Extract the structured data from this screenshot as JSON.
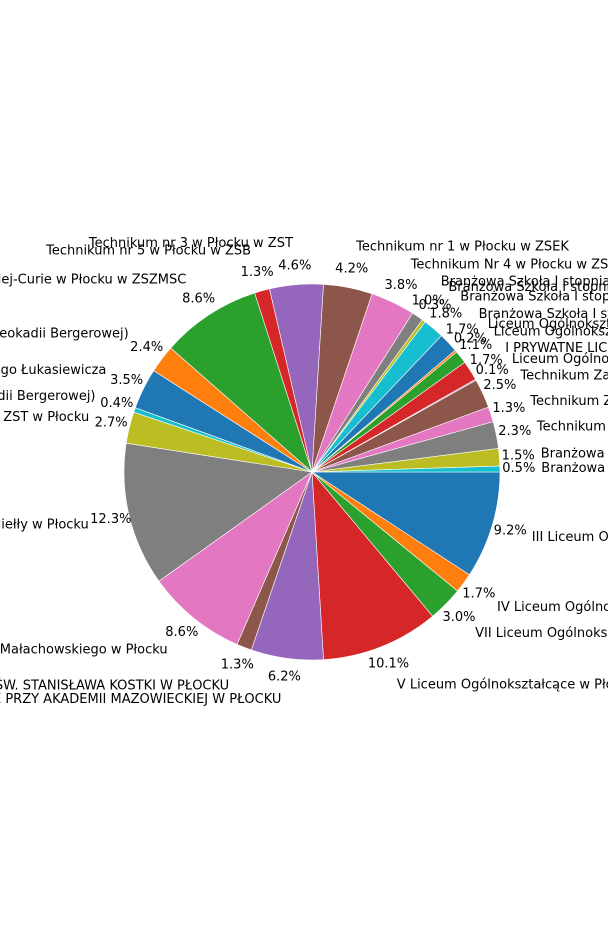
{
  "chart_data": {
    "type": "pie",
    "start_angle_deg": 0,
    "direction": "clockwise",
    "slices": [
      {
        "label": "III Liceum Ogólnokształcące",
        "pct_label": "9.2%",
        "value": 9.2,
        "color": "#1f77b4"
      },
      {
        "label": "IV Liceum Ogólnokształcące",
        "pct_label": "1.7%",
        "value": 1.7,
        "color": "#ff7f0e"
      },
      {
        "label": "VII Liceum Ogólnokształcące",
        "pct_label": "3.0%",
        "value": 3.0,
        "color": "#2ca02c"
      },
      {
        "label": "V Liceum Ogólnokształcące w Płocku",
        "pct_label": "10.1%",
        "value": 10.1,
        "color": "#d62728"
      },
      {
        "label": "LICEUM OGÓLNOKSZTAŁCĄCE PRZY AKADEMII MAZOWIECKIEJ W PŁOCKU",
        "pct_label": "6.2%",
        "value": 6.2,
        "color": "#9467bd"
      },
      {
        "label": "LICEUM OGÓLNOKSZTAŁCĄCE IM. ŚW. STANISŁAWA KOSTKI W PŁOCKU",
        "pct_label": "1.3%",
        "value": 1.3,
        "color": "#8c564b"
      },
      {
        "label": "Liceum Ogólnokształcące im. Władysława Jagiełły i Stanisława Małachowskiego w Płocku",
        "pct_label": "8.6%",
        "value": 8.6,
        "color": "#e377c2"
      },
      {
        "label": "Liceum Ogólnokształcące im. Władysława Jagiełły w Płocku",
        "pct_label": "12.3%",
        "value": 12.3,
        "color": "#7f7f7f"
      },
      {
        "label": "Liceum Ogólnokształcące w ZST w Płocku",
        "pct_label": "2.7%",
        "value": 2.7,
        "color": "#bcbd22"
      },
      {
        "label": "Liceum Ogólnokształcące w ZS (im. Leokadii Bergerowej)",
        "pct_label": "0.4%",
        "value": 0.4,
        "color": "#17becf"
      },
      {
        "label": "Liceum Ogólnokształcące im. Ignacego Łukasiewicza",
        "pct_label": "3.5%",
        "value": 3.5,
        "color": "#1f77b4"
      },
      {
        "label": "Technikum w ZS (im. Leokadii Bergerowej)",
        "pct_label": "2.4%",
        "value": 2.4,
        "color": "#ff7f0e"
      },
      {
        "label": "Technikum im. Marii Skłodowskiej-Curie w Płocku w ZSZMSC",
        "pct_label": "8.6%",
        "value": 8.6,
        "color": "#2ca02c"
      },
      {
        "label": "Technikum nr 5 w Płocku w ZSB",
        "pct_label": "1.3%",
        "value": 1.3,
        "color": "#d62728"
      },
      {
        "label": "Technikum nr 3 w Płocku w ZST",
        "pct_label": "4.6%",
        "value": 4.6,
        "color": "#9467bd"
      },
      {
        "label": "Technikum nr 1 w Płocku w ZSEK",
        "pct_label": "4.2%",
        "value": 4.2,
        "color": "#8c564b"
      },
      {
        "label": "Technikum Nr 4 w Płocku w ZS",
        "pct_label": "3.8%",
        "value": 3.8,
        "color": "#e377c2"
      },
      {
        "label": "Branżowa Szkoła I stopnia",
        "pct_label": "1.0%",
        "value": 1.0,
        "color": "#7f7f7f"
      },
      {
        "label": "Branżowa Szkoła I stopnia",
        "pct_label": "0.3%",
        "value": 0.3,
        "color": "#bcbd22"
      },
      {
        "label": "Branżowa Szkoła I stopnia",
        "pct_label": "1.8%",
        "value": 1.8,
        "color": "#17becf"
      },
      {
        "label": "Branżowa Szkoła I stopnia",
        "pct_label": "1.7%",
        "value": 1.7,
        "color": "#1f77b4"
      },
      {
        "label": "Liceum Ogólnokształcące",
        "pct_label": "0.2%",
        "value": 0.2,
        "color": "#ff7f0e"
      },
      {
        "label": "Liceum Ogólnokształcące",
        "pct_label": "1.1%",
        "value": 1.1,
        "color": "#2ca02c"
      },
      {
        "label": "I PRYWATNE LICEUM",
        "pct_label": "1.7%",
        "value": 1.7,
        "color": "#d62728"
      },
      {
        "label": "Liceum Ogólnokształcące",
        "pct_label": "0.1%",
        "value": 0.1,
        "color": "#9467bd"
      },
      {
        "label": "Technikum Zawodowe",
        "pct_label": "2.5%",
        "value": 2.5,
        "color": "#8c564b"
      },
      {
        "label": "Technikum Zawodowe",
        "pct_label": "1.3%",
        "value": 1.3,
        "color": "#e377c2"
      },
      {
        "label": "Technikum",
        "pct_label": "2.3%",
        "value": 2.3,
        "color": "#7f7f7f"
      },
      {
        "label": "Branżowa Szkoła",
        "pct_label": "1.5%",
        "value": 1.5,
        "color": "#bcbd22"
      },
      {
        "label": "Branżowa Szkoła",
        "pct_label": "0.5%",
        "value": 0.5,
        "color": "#17becf"
      }
    ]
  }
}
